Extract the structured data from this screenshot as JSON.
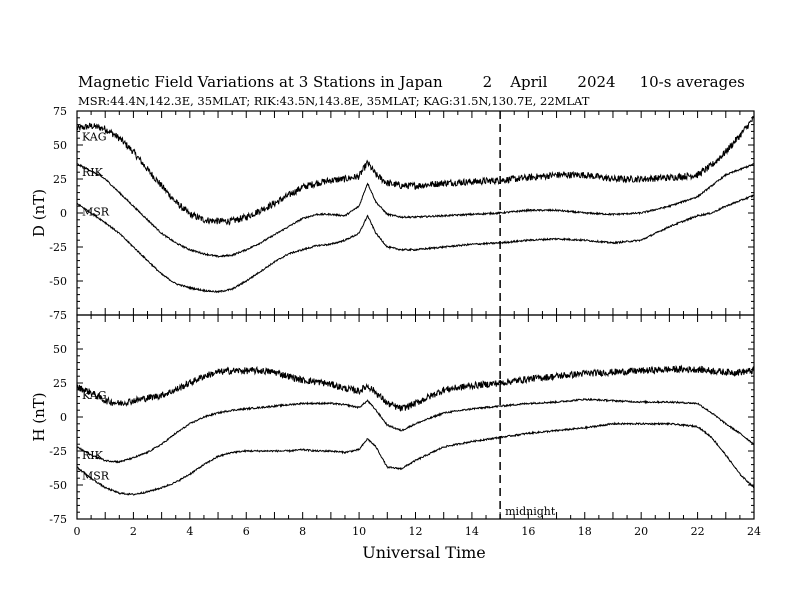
{
  "header": {
    "title_main": "Magnetic Field Variations at 3 Stations in Japan",
    "title_day": "2",
    "title_month": "April",
    "title_year": "2024",
    "title_avg": "10-s averages",
    "subtitle": "MSR:44.4N,142.3E, 35MLAT;  RIK:43.5N,143.8E, 35MLAT;  KAG:31.5N,130.7E, 22MLAT"
  },
  "chart_data": [
    {
      "type": "line",
      "panel": "top",
      "ylabel": "D (nT)",
      "xlabel": "",
      "xlim": [
        0,
        24
      ],
      "ylim": [
        -75,
        75
      ],
      "xticks": [
        0,
        2,
        4,
        6,
        8,
        10,
        12,
        14,
        16,
        18,
        20,
        22,
        24
      ],
      "yticks": [
        75,
        50,
        25,
        0,
        -25,
        -50,
        -75
      ],
      "series": [
        {
          "name": "KAG",
          "noise": 2.5,
          "x": [
            0,
            0.5,
            1,
            1.5,
            2,
            2.5,
            3,
            3.5,
            4,
            4.5,
            5,
            5.5,
            6,
            6.5,
            7,
            7.5,
            8,
            8.5,
            9,
            9.5,
            10,
            10.3,
            10.6,
            11,
            11.5,
            12,
            13,
            14,
            15,
            16,
            17,
            18,
            19,
            20,
            21,
            22,
            22.5,
            23,
            23.5,
            24
          ],
          "y": [
            62,
            64,
            62,
            55,
            45,
            32,
            20,
            8,
            -1,
            -5,
            -6,
            -6,
            -3,
            2,
            7,
            13,
            19,
            22,
            24,
            25,
            27,
            37,
            28,
            22,
            20,
            20,
            22,
            23,
            24,
            26,
            28,
            28,
            25,
            25,
            26,
            28,
            35,
            45,
            57,
            70
          ]
        },
        {
          "name": "RIK",
          "noise": 0.6,
          "x": [
            0,
            0.5,
            1,
            1.5,
            2,
            2.5,
            3,
            3.5,
            4,
            4.5,
            5,
            5.5,
            6,
            6.5,
            7,
            7.5,
            8,
            8.5,
            9,
            9.5,
            10,
            10.3,
            10.6,
            11,
            11.5,
            12,
            13,
            14,
            15,
            16,
            17,
            18,
            19,
            20,
            21,
            22,
            22.5,
            23,
            23.5,
            24
          ],
          "y": [
            36,
            31,
            25,
            15,
            5,
            -5,
            -15,
            -22,
            -27,
            -30,
            -32,
            -31,
            -27,
            -22,
            -16,
            -10,
            -4,
            -1,
            -1,
            -2,
            5,
            22,
            8,
            -1,
            -3,
            -3,
            -2,
            -1,
            0,
            2,
            2,
            0,
            -1,
            0,
            5,
            12,
            20,
            28,
            32,
            36
          ]
        },
        {
          "name": "MSR",
          "noise": 0.6,
          "x": [
            0,
            0.5,
            1,
            1.5,
            2,
            2.5,
            3,
            3.5,
            4,
            4.5,
            5,
            5.5,
            6,
            6.5,
            7,
            7.5,
            8,
            8.5,
            9,
            9.5,
            10,
            10.3,
            10.6,
            11,
            11.5,
            12,
            13,
            14,
            15,
            16,
            17,
            18,
            19,
            20,
            21,
            22,
            22.5,
            23,
            23.5,
            24
          ],
          "y": [
            7,
            0,
            -7,
            -15,
            -25,
            -35,
            -45,
            -52,
            -55,
            -57,
            -58,
            -56,
            -50,
            -43,
            -36,
            -30,
            -27,
            -24,
            -23,
            -20,
            -15,
            -2,
            -15,
            -25,
            -27,
            -27,
            -25,
            -23,
            -22,
            -20,
            -19,
            -20,
            -22,
            -20,
            -10,
            -2,
            0,
            5,
            9,
            13
          ]
        }
      ]
    },
    {
      "type": "line",
      "panel": "bottom",
      "ylabel": "H (nT)",
      "xlabel": "Universal Time",
      "xlim": [
        0,
        24
      ],
      "ylim": [
        -75,
        75
      ],
      "xticks": [
        0,
        2,
        4,
        6,
        8,
        10,
        12,
        14,
        16,
        18,
        20,
        22,
        24
      ],
      "yticks": [
        75,
        50,
        25,
        0,
        -25,
        -50,
        -75
      ],
      "annotation": {
        "x": 15,
        "label": "midnight"
      },
      "series": [
        {
          "name": "KAG",
          "noise": 2.5,
          "x": [
            0,
            0.5,
            1,
            1.5,
            2,
            2.5,
            3,
            3.5,
            4,
            4.5,
            5,
            5.5,
            6,
            6.5,
            7,
            7.5,
            8,
            8.5,
            9,
            9.5,
            10,
            10.3,
            10.6,
            11,
            11.5,
            12,
            13,
            14,
            15,
            16,
            17,
            18,
            19,
            20,
            21,
            22,
            22.5,
            23,
            23.5,
            24
          ],
          "y": [
            22,
            18,
            12,
            10,
            12,
            14,
            16,
            20,
            25,
            30,
            33,
            34,
            34,
            34,
            33,
            30,
            27,
            26,
            24,
            21,
            19,
            23,
            18,
            10,
            6,
            10,
            20,
            23,
            25,
            28,
            30,
            32,
            33,
            34,
            35,
            35,
            34,
            33,
            33,
            34
          ]
        },
        {
          "name": "RIK",
          "noise": 0.6,
          "x": [
            0,
            0.5,
            1,
            1.5,
            2,
            2.5,
            3,
            3.5,
            4,
            4.5,
            5,
            5.5,
            6,
            6.5,
            7,
            7.5,
            8,
            8.5,
            9,
            9.5,
            10,
            10.3,
            10.6,
            11,
            11.5,
            12,
            13,
            14,
            15,
            16,
            17,
            18,
            19,
            20,
            21,
            22,
            22.5,
            23,
            23.5,
            24
          ],
          "y": [
            -22,
            -28,
            -32,
            -33,
            -30,
            -26,
            -20,
            -12,
            -5,
            0,
            3,
            5,
            6,
            7,
            8,
            9,
            10,
            10,
            10,
            9,
            7,
            12,
            5,
            -6,
            -10,
            -5,
            3,
            6,
            8,
            10,
            11,
            13,
            12,
            11,
            11,
            10,
            3,
            -5,
            -12,
            -20
          ]
        },
        {
          "name": "MSR",
          "noise": 0.6,
          "x": [
            0,
            0.5,
            1,
            1.5,
            2,
            2.5,
            3,
            3.5,
            4,
            4.5,
            5,
            5.5,
            6,
            6.5,
            7,
            7.5,
            8,
            8.5,
            9,
            9.5,
            10,
            10.3,
            10.6,
            11,
            11.5,
            12,
            13,
            14,
            15,
            16,
            17,
            18,
            19,
            20,
            21,
            22,
            22.5,
            23,
            23.5,
            24
          ],
          "y": [
            -37,
            -45,
            -52,
            -56,
            -57,
            -55,
            -52,
            -48,
            -42,
            -35,
            -29,
            -26,
            -25,
            -25,
            -25,
            -25,
            -24,
            -25,
            -25,
            -26,
            -24,
            -16,
            -22,
            -37,
            -38,
            -32,
            -22,
            -18,
            -15,
            -12,
            -10,
            -8,
            -5,
            -5,
            -5,
            -7,
            -15,
            -28,
            -42,
            -52
          ]
        }
      ]
    }
  ]
}
